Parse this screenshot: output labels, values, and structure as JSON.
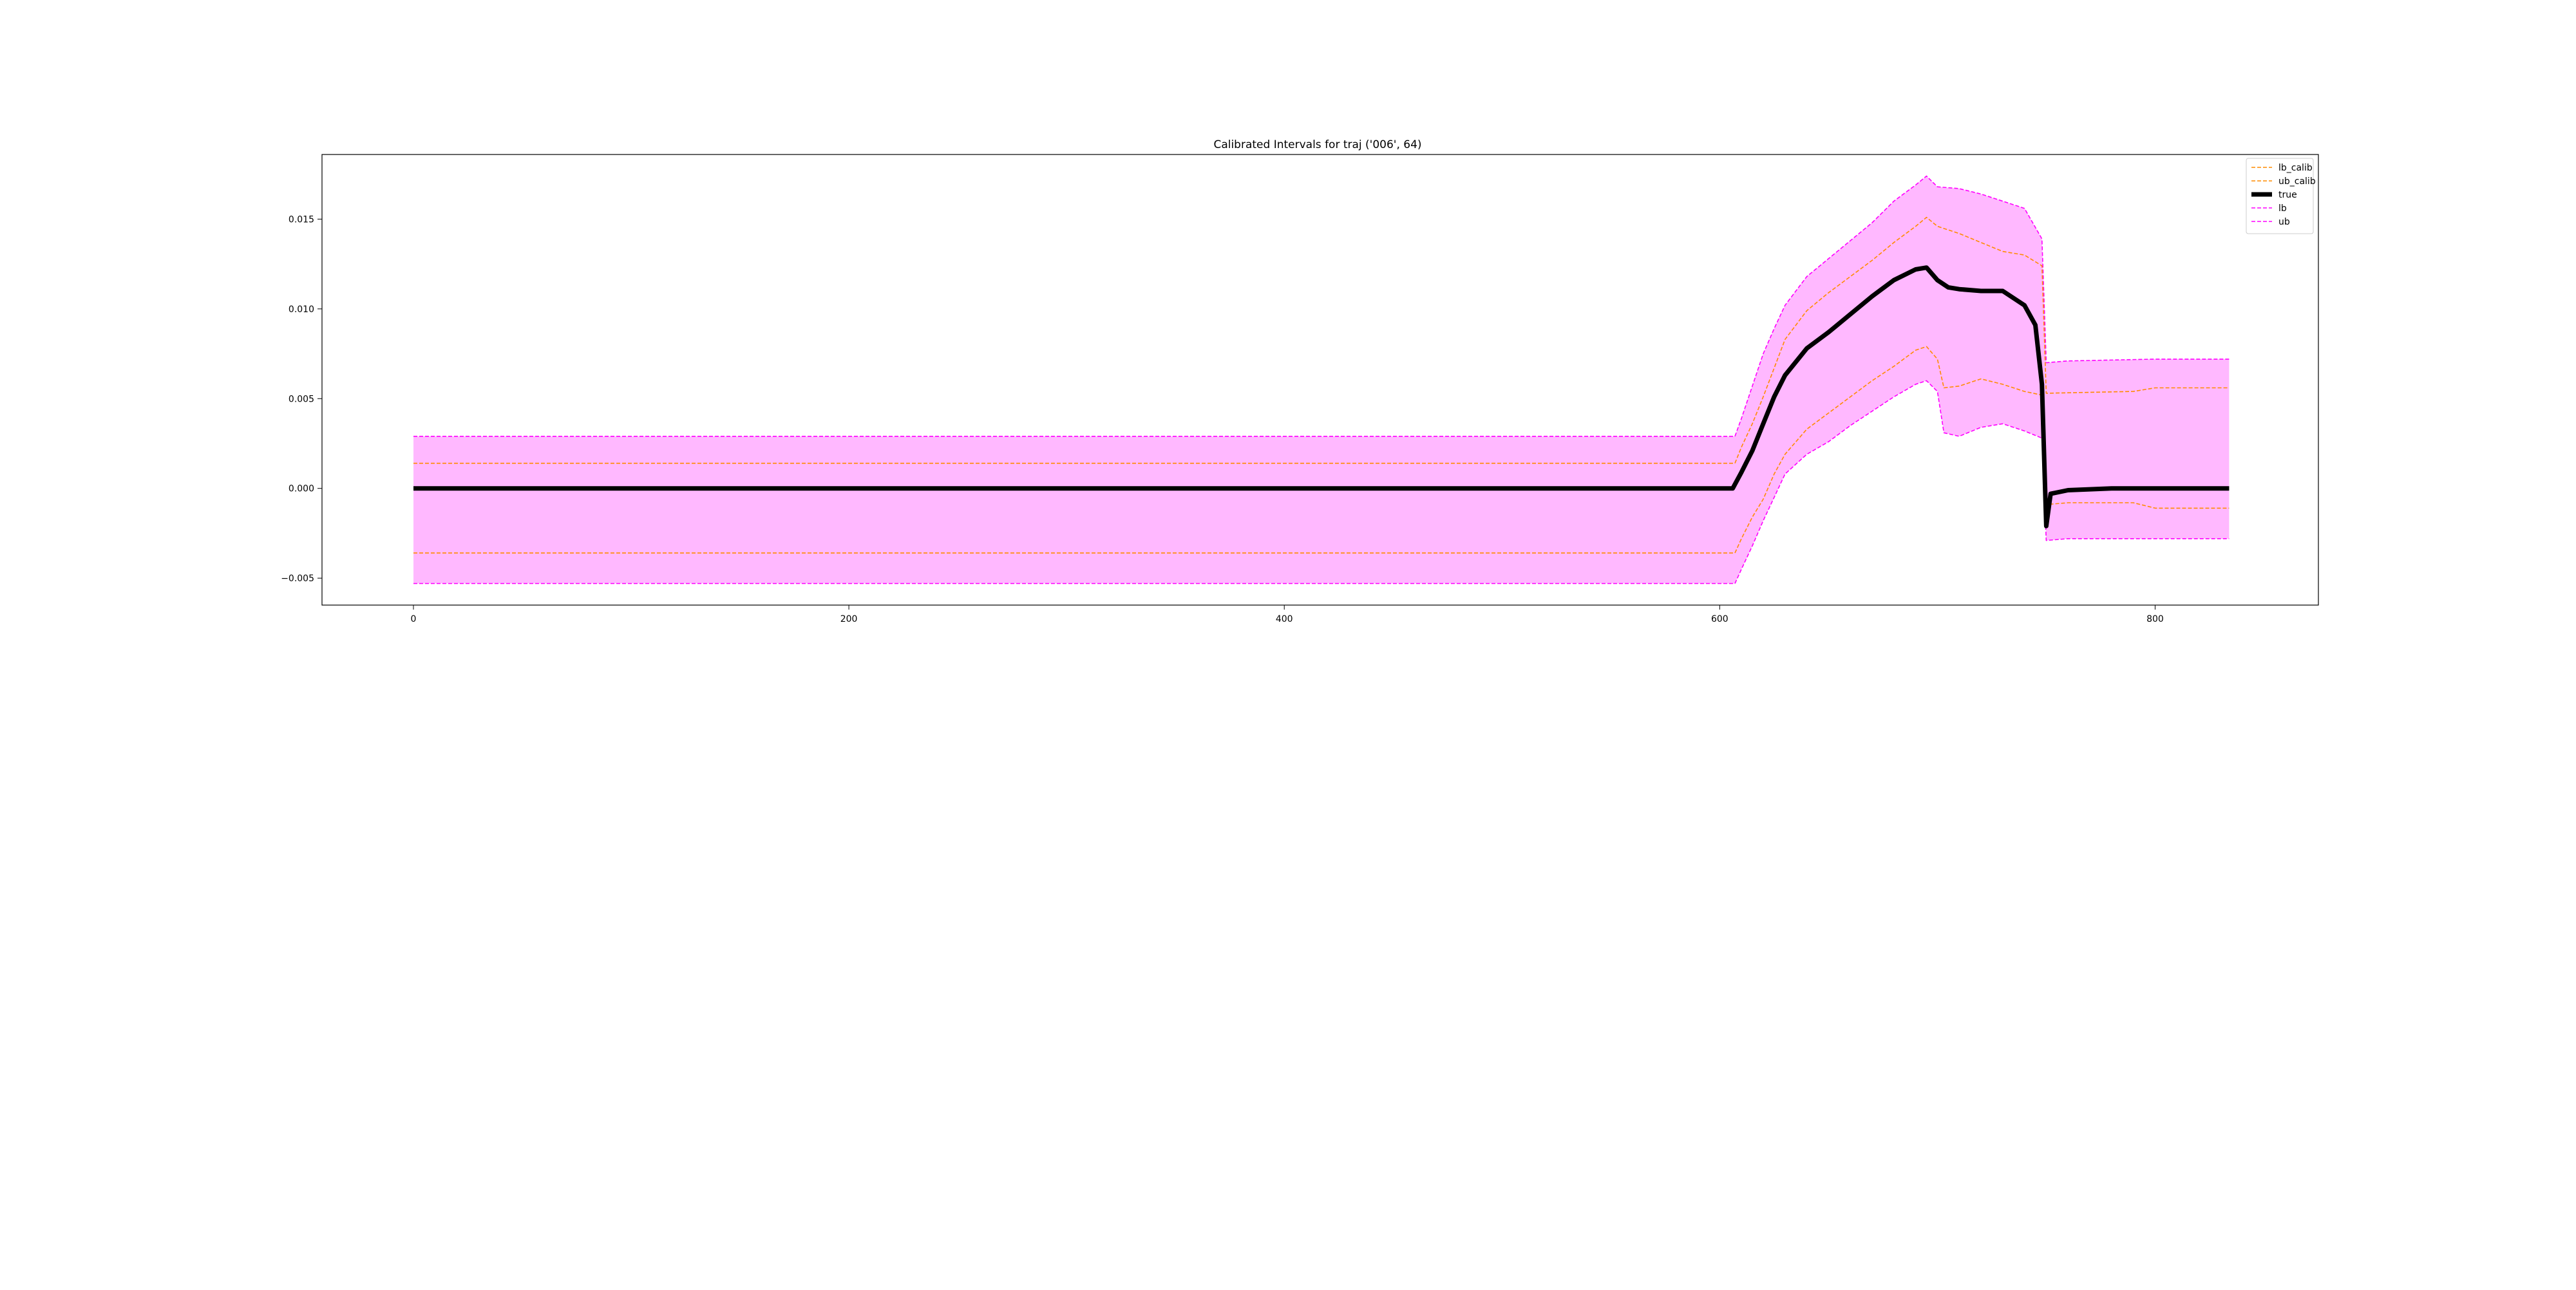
{
  "chart_data": {
    "type": "line",
    "title": "Calibrated Intervals for traj ('006', 64)",
    "xlabel": "",
    "ylabel": "",
    "xlim": [
      -42,
      875
    ],
    "ylim": [
      -0.0065,
      0.0186
    ],
    "xticks": [
      0,
      200,
      400,
      600,
      800
    ],
    "xtick_labels": [
      "0",
      "200",
      "400",
      "600",
      "800"
    ],
    "yticks": [
      -0.005,
      0.0,
      0.005,
      0.01,
      0.015
    ],
    "ytick_labels": [
      "−0.005",
      "0.000",
      "0.005",
      "0.010",
      "0.015"
    ],
    "grid": false,
    "legend_position": "top-right",
    "fill_between": {
      "lower": "lb",
      "upper": "ub",
      "color": "#ff00ff",
      "opacity": 0.28
    },
    "series": [
      {
        "name": "lb_calib",
        "color": "#ff8c00",
        "style": "dashed",
        "x": [
          0,
          607,
          610,
          615,
          620,
          625,
          630,
          640,
          650,
          660,
          670,
          680,
          690,
          695,
          700,
          703,
          710,
          720,
          730,
          740,
          748,
          750,
          760,
          790,
          800,
          834
        ],
        "y": [
          -0.0036,
          -0.0036,
          -0.0028,
          -0.0016,
          -0.0006,
          0.0008,
          0.0019,
          0.0033,
          0.0042,
          0.0051,
          0.006,
          0.0068,
          0.0077,
          0.0079,
          0.0072,
          0.0056,
          0.0057,
          0.0061,
          0.0058,
          0.0054,
          0.0052,
          -0.0009,
          -0.0008,
          -0.0008,
          -0.0011,
          -0.0011
        ]
      },
      {
        "name": "ub_calib",
        "color": "#ff8c00",
        "style": "dashed",
        "x": [
          0,
          607,
          610,
          615,
          620,
          625,
          630,
          640,
          650,
          660,
          670,
          680,
          690,
          695,
          700,
          710,
          720,
          730,
          740,
          748,
          750,
          790,
          800,
          834
        ],
        "y": [
          0.0014,
          0.0014,
          0.0023,
          0.0036,
          0.0051,
          0.0067,
          0.0083,
          0.0099,
          0.0109,
          0.0118,
          0.0127,
          0.0137,
          0.0146,
          0.0151,
          0.0146,
          0.0142,
          0.0137,
          0.0132,
          0.013,
          0.0124,
          0.0053,
          0.0054,
          0.0056,
          0.0056
        ]
      },
      {
        "name": "true",
        "color": "#000000",
        "style": "solid",
        "x": [
          0,
          606,
          610,
          615,
          620,
          625,
          630,
          640,
          650,
          660,
          670,
          680,
          690,
          695,
          700,
          705,
          710,
          720,
          730,
          740,
          745,
          748,
          750,
          752,
          760,
          780,
          834
        ],
        "y": [
          0.0,
          0.0,
          0.0009,
          0.0021,
          0.0036,
          0.0051,
          0.0063,
          0.0078,
          0.0087,
          0.0097,
          0.0107,
          0.0116,
          0.0122,
          0.0123,
          0.0116,
          0.0112,
          0.0111,
          0.011,
          0.011,
          0.0102,
          0.0091,
          0.0058,
          -0.0021,
          -0.0003,
          -0.0001,
          0.0,
          0.0
        ]
      },
      {
        "name": "lb",
        "color": "#ff00ff",
        "style": "dashed",
        "x": [
          0,
          607,
          610,
          615,
          620,
          625,
          630,
          640,
          650,
          660,
          670,
          680,
          690,
          695,
          700,
          703,
          710,
          720,
          730,
          740,
          748,
          750,
          760,
          800,
          834
        ],
        "y": [
          -0.0053,
          -0.0053,
          -0.0045,
          -0.0032,
          -0.0018,
          -0.0005,
          0.0008,
          0.0019,
          0.0026,
          0.0035,
          0.0043,
          0.0051,
          0.0058,
          0.006,
          0.0054,
          0.0031,
          0.0029,
          0.0034,
          0.0036,
          0.0032,
          0.0028,
          -0.0029,
          -0.0028,
          -0.0028,
          -0.0028
        ]
      },
      {
        "name": "ub",
        "color": "#ff00ff",
        "style": "dashed",
        "x": [
          0,
          607,
          610,
          615,
          620,
          625,
          630,
          640,
          650,
          660,
          670,
          680,
          690,
          695,
          700,
          710,
          720,
          730,
          740,
          748,
          750,
          760,
          800,
          834
        ],
        "y": [
          0.0029,
          0.0029,
          0.0039,
          0.0057,
          0.0075,
          0.0089,
          0.0102,
          0.0118,
          0.0128,
          0.0138,
          0.0148,
          0.016,
          0.0169,
          0.0174,
          0.0168,
          0.0167,
          0.0164,
          0.016,
          0.0156,
          0.0139,
          0.007,
          0.0071,
          0.0072,
          0.0072
        ]
      }
    ]
  }
}
